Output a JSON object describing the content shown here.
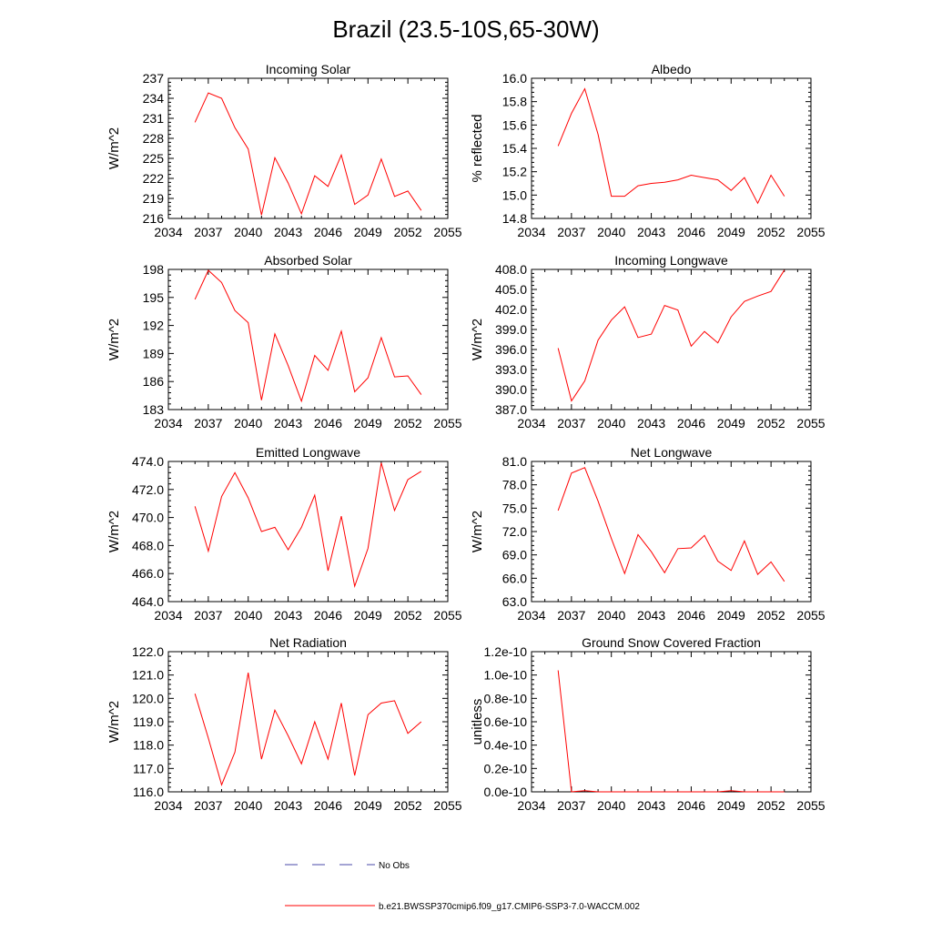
{
  "title": "Brazil (23.5-10S,65-30W)",
  "line_color": "#ff0000",
  "obs_color": "#4a4aa8",
  "legend": {
    "obs_label": "No Obs",
    "model_label": "b.e21.BWSSP370cmip6.f09_g17.CMIP6-SSP3-7.0-WACCM.002"
  },
  "chart_data": [
    {
      "type": "line",
      "title": "Incoming Solar",
      "ylabel": "W/m^2",
      "xlim": [
        2034,
        2055
      ],
      "x_ticks": [
        "2034",
        "2037",
        "2040",
        "2043",
        "2046",
        "2049",
        "2052",
        "2055"
      ],
      "ylim": [
        216,
        237
      ],
      "y_ticks": [
        "216",
        "219",
        "222",
        "225",
        "228",
        "231",
        "234",
        "237"
      ],
      "x": [
        2036,
        2037,
        2038,
        2039,
        2040,
        2041,
        2042,
        2043,
        2044,
        2045,
        2046,
        2047,
        2048,
        2049,
        2050,
        2051,
        2052,
        2053
      ],
      "values": [
        230.4,
        234.8,
        234.0,
        229.6,
        226.4,
        216.5,
        225.1,
        221.3,
        216.7,
        222.4,
        220.8,
        225.5,
        218.1,
        219.5,
        224.9,
        219.3,
        220.1,
        217.2
      ]
    },
    {
      "type": "line",
      "title": "Albedo",
      "ylabel": "% reflected",
      "xlim": [
        2034,
        2055
      ],
      "x_ticks": [
        "2034",
        "2037",
        "2040",
        "2043",
        "2046",
        "2049",
        "2052",
        "2055"
      ],
      "ylim": [
        14.8,
        16.0
      ],
      "y_ticks": [
        "14.8",
        "15.0",
        "15.2",
        "15.4",
        "15.6",
        "15.8",
        "16.0"
      ],
      "x": [
        2036,
        2037,
        2038,
        2039,
        2040,
        2041,
        2042,
        2043,
        2044,
        2045,
        2046,
        2047,
        2048,
        2049,
        2050,
        2051,
        2052,
        2053
      ],
      "values": [
        15.42,
        15.7,
        15.91,
        15.52,
        14.99,
        14.99,
        15.08,
        15.1,
        15.11,
        15.13,
        15.17,
        15.15,
        15.13,
        15.04,
        15.15,
        14.93,
        15.17,
        14.99
      ]
    },
    {
      "type": "line",
      "title": "Absorbed Solar",
      "ylabel": "W/m^2",
      "xlim": [
        2034,
        2055
      ],
      "x_ticks": [
        "2034",
        "2037",
        "2040",
        "2043",
        "2046",
        "2049",
        "2052",
        "2055"
      ],
      "ylim": [
        183,
        198
      ],
      "y_ticks": [
        "183",
        "186",
        "189",
        "192",
        "195",
        "198"
      ],
      "x": [
        2036,
        2037,
        2038,
        2039,
        2040,
        2041,
        2042,
        2043,
        2044,
        2045,
        2046,
        2047,
        2048,
        2049,
        2050,
        2051,
        2052,
        2053
      ],
      "values": [
        194.8,
        197.9,
        196.6,
        193.6,
        192.3,
        184.0,
        191.1,
        187.7,
        183.9,
        188.8,
        187.2,
        191.4,
        184.9,
        186.4,
        190.7,
        186.5,
        186.6,
        184.6
      ]
    },
    {
      "type": "line",
      "title": "Incoming Longwave",
      "ylabel": "W/m^2",
      "xlim": [
        2034,
        2055
      ],
      "x_ticks": [
        "2034",
        "2037",
        "2040",
        "2043",
        "2046",
        "2049",
        "2052",
        "2055"
      ],
      "ylim": [
        387.0,
        408.0
      ],
      "y_ticks": [
        "387.0",
        "390.0",
        "393.0",
        "396.0",
        "399.0",
        "402.0",
        "405.0",
        "408.0"
      ],
      "x": [
        2036,
        2037,
        2038,
        2039,
        2040,
        2041,
        2042,
        2043,
        2044,
        2045,
        2046,
        2047,
        2048,
        2049,
        2050,
        2051,
        2052,
        2053
      ],
      "values": [
        396.2,
        388.3,
        391.3,
        397.4,
        400.4,
        402.4,
        397.8,
        398.3,
        402.6,
        401.9,
        396.5,
        398.7,
        397.0,
        400.9,
        403.2,
        404.0,
        404.7,
        407.9
      ]
    },
    {
      "type": "line",
      "title": "Emitted Longwave",
      "ylabel": "W/m^2",
      "xlim": [
        2034,
        2055
      ],
      "x_ticks": [
        "2034",
        "2037",
        "2040",
        "2043",
        "2046",
        "2049",
        "2052",
        "2055"
      ],
      "ylim": [
        464.0,
        474.0
      ],
      "y_ticks": [
        "464.0",
        "466.0",
        "468.0",
        "470.0",
        "472.0",
        "474.0"
      ],
      "x": [
        2036,
        2037,
        2038,
        2039,
        2040,
        2041,
        2042,
        2043,
        2044,
        2045,
        2046,
        2047,
        2048,
        2049,
        2050,
        2051,
        2052,
        2053
      ],
      "values": [
        470.8,
        467.6,
        471.5,
        473.2,
        471.4,
        469.0,
        469.3,
        467.7,
        469.3,
        471.6,
        466.2,
        470.1,
        465.1,
        467.8,
        473.9,
        470.5,
        472.7,
        473.3
      ]
    },
    {
      "type": "line",
      "title": "Net Longwave",
      "ylabel": "W/m^2",
      "xlim": [
        2034,
        2055
      ],
      "x_ticks": [
        "2034",
        "2037",
        "2040",
        "2043",
        "2046",
        "2049",
        "2052",
        "2055"
      ],
      "ylim": [
        63.0,
        81.0
      ],
      "y_ticks": [
        "63.0",
        "66.0",
        "69.0",
        "72.0",
        "75.0",
        "78.0",
        "81.0"
      ],
      "x": [
        2036,
        2037,
        2038,
        2039,
        2040,
        2041,
        2042,
        2043,
        2044,
        2045,
        2046,
        2047,
        2048,
        2049,
        2050,
        2051,
        2052,
        2053
      ],
      "values": [
        74.7,
        79.5,
        80.2,
        75.9,
        71.1,
        66.6,
        71.6,
        69.4,
        66.7,
        69.8,
        69.9,
        71.5,
        68.2,
        67.0,
        70.8,
        66.5,
        68.1,
        65.6
      ]
    },
    {
      "type": "line",
      "title": "Net Radiation",
      "ylabel": "W/m^2",
      "xlim": [
        2034,
        2055
      ],
      "x_ticks": [
        "2034",
        "2037",
        "2040",
        "2043",
        "2046",
        "2049",
        "2052",
        "2055"
      ],
      "ylim": [
        116.0,
        122.0
      ],
      "y_ticks": [
        "116.0",
        "117.0",
        "118.0",
        "119.0",
        "120.0",
        "121.0",
        "122.0"
      ],
      "x": [
        2036,
        2037,
        2038,
        2039,
        2040,
        2041,
        2042,
        2043,
        2044,
        2045,
        2046,
        2047,
        2048,
        2049,
        2050,
        2051,
        2052,
        2053
      ],
      "values": [
        120.2,
        118.3,
        116.3,
        117.7,
        121.1,
        117.4,
        119.5,
        118.4,
        117.2,
        119.0,
        117.4,
        119.8,
        116.7,
        119.3,
        119.8,
        119.9,
        118.5,
        119.0
      ]
    },
    {
      "type": "line",
      "title": "Ground Snow Covered Fraction",
      "ylabel": "unitless",
      "xlim": [
        2034,
        2055
      ],
      "x_ticks": [
        "2034",
        "2037",
        "2040",
        "2043",
        "2046",
        "2049",
        "2052",
        "2055"
      ],
      "ylim": [
        0.0,
        1.2
      ],
      "y_ticks": [
        "0.0e-10",
        "0.2e-10",
        "0.4e-10",
        "0.6e-10",
        "0.8e-10",
        "1.0e-10",
        "1.2e-10"
      ],
      "x": [
        2036,
        2037,
        2038,
        2039,
        2040,
        2041,
        2042,
        2043,
        2044,
        2045,
        2046,
        2047,
        2048,
        2049,
        2050,
        2051,
        2052,
        2053
      ],
      "values": [
        1.04,
        0.0,
        0.01,
        0.0,
        0.0,
        0.0,
        0.0,
        0.0,
        0.0,
        0.0,
        0.0,
        0.0,
        0.0,
        0.01,
        0.0,
        0.0,
        0.0,
        0.0
      ]
    }
  ]
}
